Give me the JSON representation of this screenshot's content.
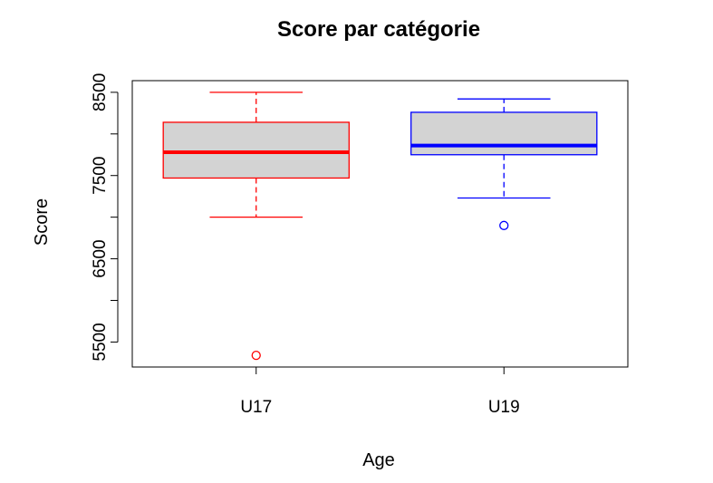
{
  "chart_data": {
    "type": "boxplot",
    "title": "Score par catégorie",
    "xlabel": "Age",
    "ylabel": "Score",
    "categories": [
      "U17",
      "U19"
    ],
    "ylim": [
      5200,
      8640
    ],
    "y_ticks": [
      5500,
      6000,
      6500,
      7000,
      7500,
      8000,
      8500
    ],
    "y_tick_labels": [
      "5500",
      "",
      "6500",
      "",
      "7500",
      "",
      "8500"
    ],
    "boxes": [
      {
        "category": "U17",
        "whisker_low": 7000,
        "q1": 7470,
        "median": 7780,
        "q3": 8140,
        "whisker_high": 8500,
        "outliers": [
          5340
        ],
        "color": "#ff0000",
        "fill": "#d3d3d3"
      },
      {
        "category": "U19",
        "whisker_low": 7230,
        "q1": 7750,
        "median": 7860,
        "q3": 8260,
        "whisker_high": 8420,
        "outliers": [
          6900
        ],
        "color": "#0000ff",
        "fill": "#d3d3d3"
      }
    ],
    "grid": false,
    "legend": "none"
  }
}
